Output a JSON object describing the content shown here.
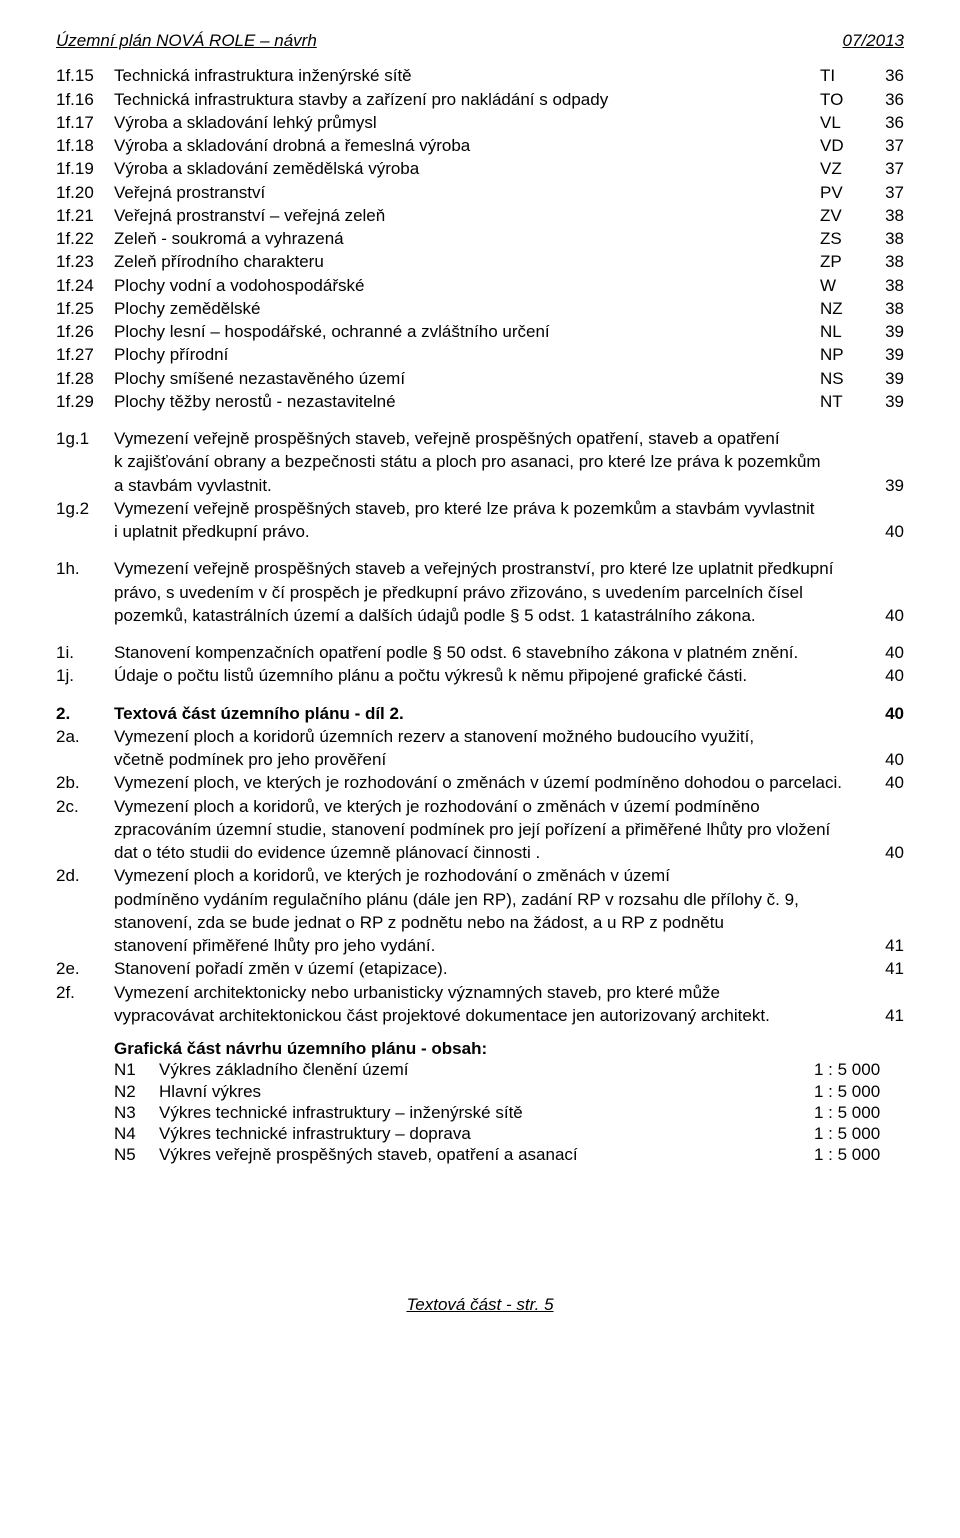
{
  "header": {
    "left": "Územní plán NOVÁ ROLE – návrh",
    "right": "07/2013"
  },
  "toc": [
    {
      "id": "1f.15",
      "label": "Technická infrastruktura inženýrské sítě",
      "code": "TI",
      "page": "36"
    },
    {
      "id": "1f.16",
      "label": "Technická infrastruktura stavby a zařízení pro nakládání s odpady",
      "code": "TO",
      "page": "36"
    },
    {
      "id": "1f.17",
      "label": "Výroba a skladování lehký průmysl",
      "code": "VL",
      "page": "36"
    },
    {
      "id": "1f.18",
      "label": "Výroba a skladování drobná a řemeslná výroba",
      "code": "VD",
      "page": "37"
    },
    {
      "id": "1f.19",
      "label": "Výroba a skladování zemědělská výroba",
      "code": "VZ",
      "page": "37"
    },
    {
      "id": "1f.20",
      "label": "Veřejná prostranství",
      "code": "PV",
      "page": "37"
    },
    {
      "id": "1f.21",
      "label": "Veřejná prostranství – veřejná zeleň",
      "code": "ZV",
      "page": "38"
    },
    {
      "id": "1f.22",
      "label": "Zeleň - soukromá a vyhrazená",
      "code": "ZS",
      "page": "38"
    },
    {
      "id": "1f.23",
      "label": "Zeleň přírodního charakteru",
      "code": "ZP",
      "page": "38"
    },
    {
      "id": "1f.24",
      "label": "Plochy vodní a vodohospodářské",
      "code": "W",
      "page": "38"
    },
    {
      "id": "1f.25",
      "label": "Plochy zemědělské",
      "code": "NZ",
      "page": "38"
    },
    {
      "id": "1f.26",
      "label": "Plochy lesní – hospodářské, ochranné a zvláštního určení",
      "code": "NL",
      "page": "39"
    },
    {
      "id": "1f.27",
      "label": "Plochy přírodní",
      "code": "NP",
      "page": "39"
    },
    {
      "id": "1f.28",
      "label": "Plochy smíšené nezastavěného území",
      "code": "NS",
      "page": "39"
    },
    {
      "id": "1f.29",
      "label": "Plochy těžby nerostů - nezastavitelné",
      "code": "NT",
      "page": "39"
    }
  ],
  "paras": [
    {
      "id": "1g.1",
      "lines": [
        {
          "text": "Vymezení veřejně prospěšných staveb, veřejně prospěšných opatření, staveb a opatření",
          "page": ""
        },
        {
          "text": "k zajišťování obrany a bezpečnosti státu a ploch pro asanaci, pro které lze práva k pozemkům",
          "page": ""
        },
        {
          "text": "a stavbám vyvlastnit.",
          "page": "39"
        }
      ]
    },
    {
      "id": "1g.2",
      "lines": [
        {
          "text": "Vymezení veřejně prospěšných staveb, pro které lze práva k pozemkům a stavbám vyvlastnit",
          "page": ""
        },
        {
          "text": "i uplatnit předkupní právo.",
          "page": "40"
        }
      ]
    }
  ],
  "paras2": [
    {
      "id": "1h.",
      "lines": [
        {
          "text": "Vymezení veřejně prospěšných staveb a veřejných prostranství, pro které lze uplatnit předkupní",
          "page": ""
        },
        {
          "text": "právo, s uvedením v čí prospěch je předkupní právo zřizováno, s uvedením parcelních čísel",
          "page": ""
        },
        {
          "text": "pozemků, katastrálních území a dalších údajů podle § 5 odst. 1 katastrálního zákona.",
          "page": "40"
        }
      ]
    }
  ],
  "paras3": [
    {
      "id": "1i.",
      "lines": [
        {
          "text": "Stanovení kompenzačních opatření podle § 50 odst. 6 stavebního zákona v platném znění.",
          "page": "40"
        }
      ]
    },
    {
      "id": "1j.",
      "lines": [
        {
          "text": "Údaje o počtu listů územního plánu a počtu výkresů k němu připojené grafické části.",
          "page": "40"
        }
      ]
    }
  ],
  "section2": [
    {
      "id": "2.",
      "bold": true,
      "lines": [
        {
          "text": "Textová část územního plánu - díl 2.",
          "page": "40"
        }
      ]
    },
    {
      "id": "2a.",
      "lines": [
        {
          "text": "Vymezení ploch a koridorů územních rezerv a stanovení možného budoucího využití,",
          "page": ""
        },
        {
          "text": "včetně podmínek pro jeho prověření",
          "page": "40"
        }
      ]
    },
    {
      "id": "2b.",
      "lines": [
        {
          "text": "Vymezení ploch, ve kterých je rozhodování o změnách v území podmíněno dohodou o parcelaci.",
          "page": "40"
        }
      ]
    },
    {
      "id": "2c.",
      "lines": [
        {
          "text": "Vymezení ploch a koridorů, ve kterých je rozhodování o změnách v území podmíněno",
          "page": ""
        },
        {
          "text": "zpracováním územní studie, stanovení podmínek pro její pořízení a přiměřené lhůty pro vložení",
          "page": ""
        },
        {
          "text": "dat o této studii do evidence územně plánovací činnosti .",
          "page": "40"
        }
      ]
    },
    {
      "id": "2d.",
      "lines": [
        {
          "text": "Vymezení ploch a koridorů, ve kterých je rozhodování o změnách v území",
          "page": ""
        },
        {
          "text": "podmíněno vydáním regulačního plánu (dále jen RP), zadání RP v rozsahu dle přílohy č. 9,",
          "page": ""
        },
        {
          "text": "stanovení, zda se bude jednat o RP z podnětu nebo na žádost, a u RP z podnětu",
          "page": ""
        },
        {
          "text": "stanovení přiměřené lhůty pro jeho vydání.",
          "page": "41"
        }
      ]
    },
    {
      "id": "2e.",
      "lines": [
        {
          "text": "Stanovení pořadí změn v území (etapizace).",
          "page": "41"
        }
      ]
    },
    {
      "id": "2f.",
      "lines": [
        {
          "text": "Vymezení architektonicky nebo urbanisticky významných staveb, pro které může",
          "page": ""
        },
        {
          "text": "vypracovávat architektonickou část projektové dokumentace jen autorizovaný architekt.",
          "page": "41"
        }
      ]
    }
  ],
  "graphics": {
    "title": "Grafická část návrhu územního plánu - obsah:",
    "rows": [
      {
        "id": "N1",
        "label": "Výkres základního členění území",
        "scale": "1 : 5 000"
      },
      {
        "id": "N2",
        "label": "Hlavní výkres",
        "scale": "1 : 5 000"
      },
      {
        "id": "N3",
        "label": "Výkres technické infrastruktury – inženýrské sítě",
        "scale": "1 : 5 000"
      },
      {
        "id": "N4",
        "label": "Výkres technické infrastruktury – doprava",
        "scale": "1 : 5 000"
      },
      {
        "id": "N5",
        "label": "Výkres veřejně prospěšných staveb, opatření a asanací",
        "scale": "1 : 5 000"
      }
    ]
  },
  "footer": "Textová část - str. 5"
}
